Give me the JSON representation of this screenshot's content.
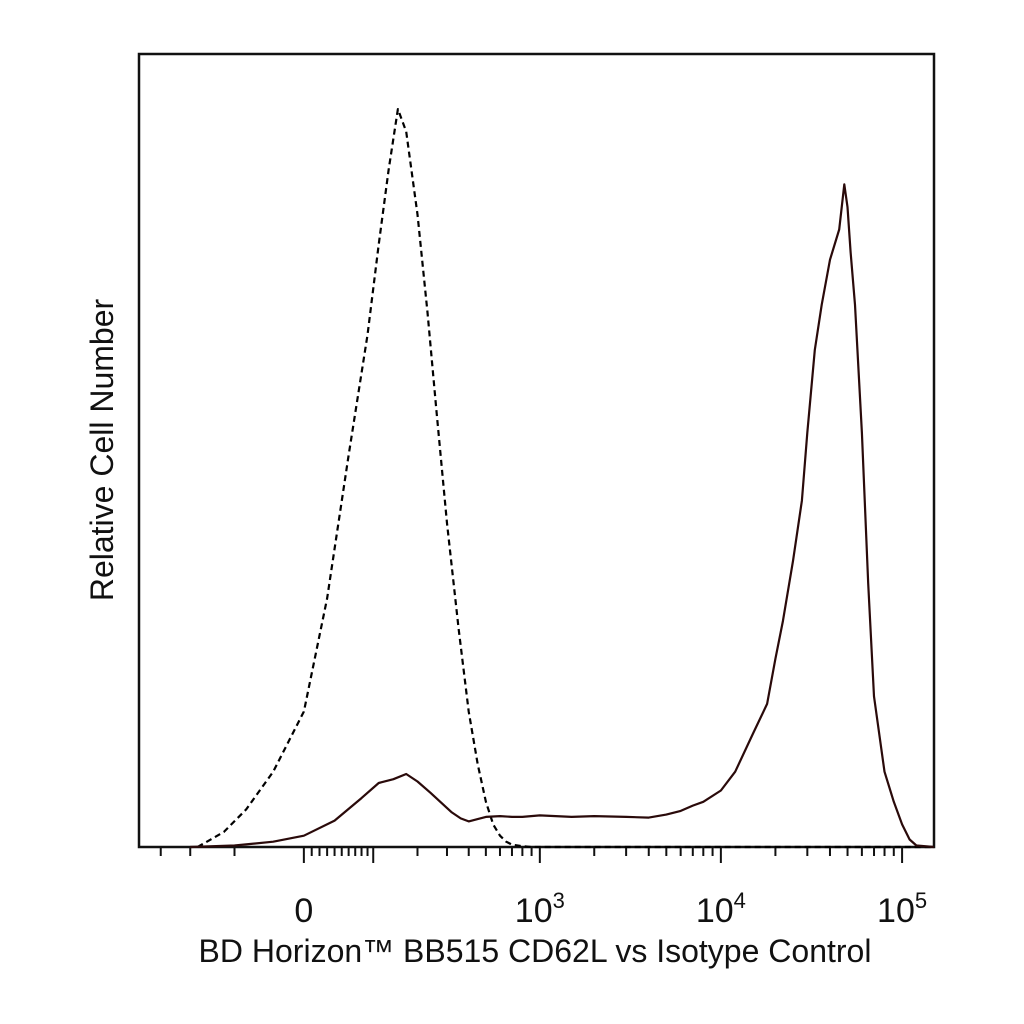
{
  "chart_data": {
    "type": "area",
    "xlabel": "BD Horizon™ BB515 CD62L vs Isotype Control",
    "ylabel": "Relative Cell Number",
    "x_scale": "biexponential",
    "xlim": [
      -400,
      150000
    ],
    "ylim": [
      0,
      1.0
    ],
    "x_tick_labels": [
      {
        "value": 0,
        "base": "0",
        "exp": ""
      },
      {
        "value": 1000,
        "base": "10",
        "exp": "3"
      },
      {
        "value": 10000,
        "base": "10",
        "exp": "4"
      },
      {
        "value": 100000,
        "base": "10",
        "exp": "5"
      }
    ],
    "grid": false,
    "legend": "none",
    "series": [
      {
        "style": "dashed",
        "color": "#000000",
        "x": [
          -180,
          -120,
          -80,
          -40,
          0,
          30,
          60,
          90,
          110,
          130,
          150,
          170,
          200,
          230,
          260,
          300,
          350,
          400,
          450,
          500,
          550,
          600,
          650,
          700,
          800,
          900,
          1000,
          1500,
          3000,
          10000,
          100000,
          150000
        ],
        "y": [
          0,
          0.02,
          0.05,
          0.1,
          0.18,
          0.33,
          0.52,
          0.68,
          0.8,
          0.9,
          0.98,
          0.95,
          0.84,
          0.71,
          0.58,
          0.43,
          0.29,
          0.18,
          0.11,
          0.06,
          0.03,
          0.015,
          0.007,
          0.003,
          0.001,
          0,
          0,
          0,
          0,
          0,
          0,
          0
        ]
      },
      {
        "style": "solid",
        "color": "#2a0a0a",
        "x": [
          -200,
          -100,
          -40,
          0,
          40,
          80,
          110,
          140,
          170,
          200,
          240,
          280,
          320,
          360,
          400,
          450,
          500,
          600,
          700,
          800,
          1000,
          1500,
          2000,
          3000,
          4000,
          5000,
          6000,
          7000,
          8000,
          10000,
          12000,
          15000,
          18000,
          20000,
          22000,
          25000,
          28000,
          30000,
          33000,
          36000,
          40000,
          45000,
          48000,
          50000,
          52000,
          55000,
          60000,
          65000,
          70000,
          80000,
          90000,
          100000,
          110000,
          120000,
          150000
        ],
        "y": [
          0,
          0.002,
          0.007,
          0.015,
          0.035,
          0.065,
          0.085,
          0.09,
          0.097,
          0.087,
          0.072,
          0.058,
          0.046,
          0.038,
          0.034,
          0.037,
          0.04,
          0.041,
          0.04,
          0.04,
          0.042,
          0.04,
          0.041,
          0.04,
          0.039,
          0.043,
          0.048,
          0.055,
          0.06,
          0.075,
          0.1,
          0.15,
          0.19,
          0.25,
          0.3,
          0.38,
          0.46,
          0.55,
          0.66,
          0.72,
          0.78,
          0.82,
          0.88,
          0.85,
          0.79,
          0.72,
          0.55,
          0.35,
          0.2,
          0.1,
          0.06,
          0.03,
          0.01,
          0.002,
          0
        ]
      }
    ]
  }
}
